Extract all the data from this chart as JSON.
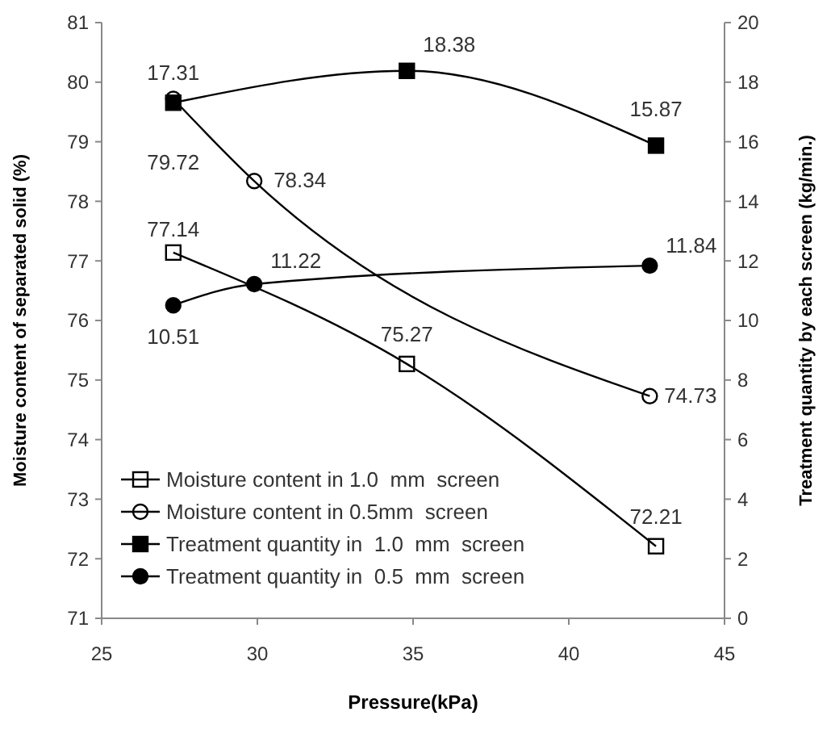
{
  "chart_data": {
    "type": "line",
    "xlabel": "Pressure(kPa)",
    "ylabel": "Moisture content  of separated solid (%)",
    "y2label": "Treatment quantity by each screen (kg/min.)",
    "xlim": [
      25,
      45
    ],
    "xticks": [
      25,
      30,
      35,
      40,
      45
    ],
    "ylim": [
      71,
      81
    ],
    "yticks": [
      71,
      72,
      73,
      74,
      75,
      76,
      77,
      78,
      79,
      80,
      81
    ],
    "y2lim": [
      0,
      20
    ],
    "y2ticks": [
      0,
      2,
      4,
      6,
      8,
      10,
      12,
      14,
      16,
      18,
      20
    ],
    "grid": false,
    "legend": "bottom left",
    "data_labels": true,
    "line_style": "solid",
    "series": [
      {
        "name": "Moisture content in 1.0  mm  screen",
        "color": "#000000",
        "marker": "square",
        "x": [
          27.3,
          34.8,
          42.8
        ],
        "values": [
          77.14,
          75.27,
          72.21
        ]
      },
      {
        "name": "Moisture content in 0.5mm  screen",
        "color": "#000000",
        "marker": "circle",
        "x": [
          27.3,
          29.9,
          42.6
        ],
        "values": [
          79.72,
          78.34,
          74.73
        ]
      },
      {
        "name": "Treatment quantity in  1.0  mm  screen",
        "color": "#000000",
        "marker": "square",
        "axis": "y2",
        "x": [
          27.3,
          34.8,
          42.8
        ],
        "values": [
          17.31,
          18.38,
          15.87
        ]
      },
      {
        "name": "Treatment quantity in  0.5  mm  screen",
        "color": "#000000",
        "marker": "circle",
        "axis": "y2",
        "x": [
          27.3,
          29.9,
          42.6
        ],
        "values": [
          10.51,
          11.22,
          11.84
        ]
      }
    ]
  }
}
